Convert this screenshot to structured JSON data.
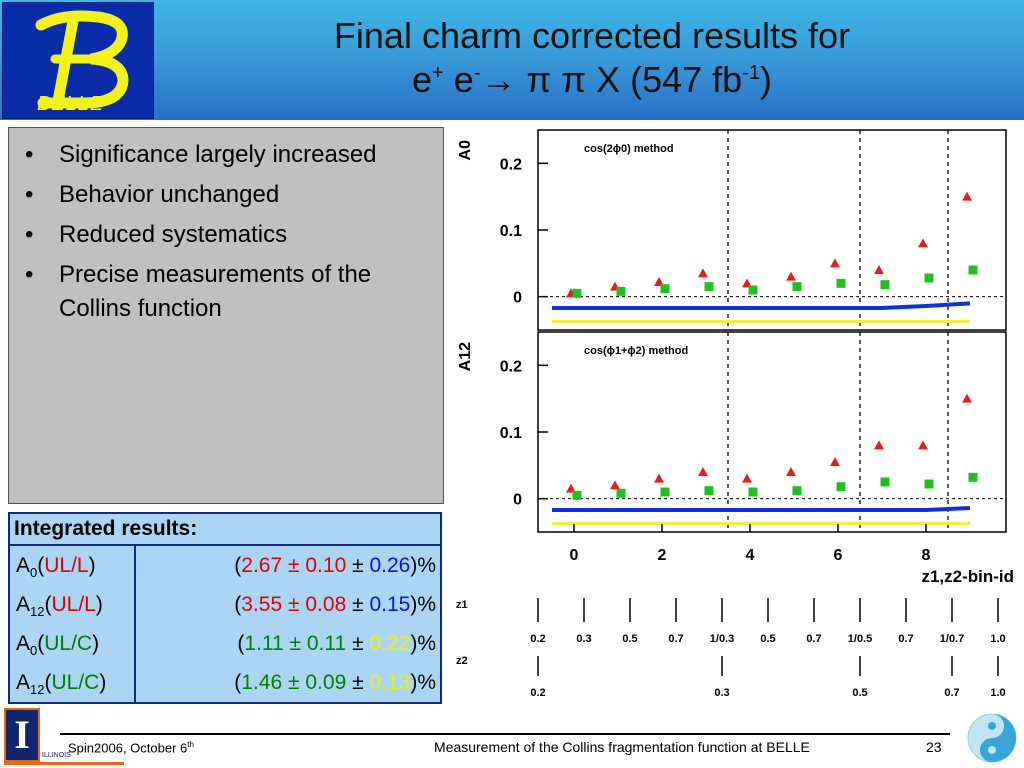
{
  "header": {
    "logo_label": "BELLE",
    "title_line1": "Final charm corrected results for",
    "title_e1": "e",
    "title_sup1": "+",
    "title_e2": " e",
    "title_sup2": "-",
    "title_arrow": "→",
    "title_rest": " π π X (547 fb",
    "title_sup3": "-1",
    "title_close": ")"
  },
  "bullets": [
    "Significance largely increased",
    "Behavior unchanged",
    "Reduced systematics",
    "Precise measurements of the Collins function"
  ],
  "bullet_glyph": "•",
  "table": {
    "header": "Integrated results:",
    "rows": [
      {
        "A": "A",
        "sub": "0",
        "type": "UL/L",
        "open": "(",
        "val": "2.67",
        "pm1": " ± ",
        "stat": "0.10",
        "pm2": " ± ",
        "sys": "0.26",
        "close": ")%",
        "label_color": "#e00000",
        "val_color": "#e00000",
        "sys_color": "#1010e0"
      },
      {
        "A": "A",
        "sub": "12",
        "type": "UL/L",
        "open": "(",
        "val": "3.55",
        "pm1": " ± ",
        "stat": "0.08",
        "pm2": " ± ",
        "sys": "0.15",
        "close": ")%",
        "label_color": "#e00000",
        "val_color": "#e00000",
        "sys_color": "#1010e0"
      },
      {
        "A": "A",
        "sub": "0",
        "type": "UL/C",
        "open": "(",
        "val": "1.11",
        "pm1": " ± ",
        "stat": "0.11",
        "pm2": " ± ",
        "sys": "0.22",
        "close": ")%",
        "label_color": "#008000",
        "val_color": "#008000",
        "sys_color": "#f0f000"
      },
      {
        "A": "A",
        "sub": "12",
        "type": "UL/C",
        "open": "(",
        "val": "1.46",
        "pm1": " ± ",
        "stat": "0.09",
        "pm2": " ± ",
        "sys": "0.13",
        "close": ")%",
        "label_color": "#008000",
        "val_color": "#008000",
        "sys_color": "#f0f000"
      }
    ]
  },
  "chart_data": [
    {
      "type": "scatter",
      "title": "cos(2ϕ0) method",
      "ylabel": "A0",
      "xlabel": "z1,z2-bin-id",
      "ylim": [
        -0.05,
        0.25
      ],
      "xlim": [
        -0.5,
        9.5
      ],
      "yticks": [
        "0",
        "0.1",
        "0.2"
      ],
      "xticks": [
        "0",
        "2",
        "4",
        "6",
        "8"
      ],
      "x": [
        0,
        1,
        2,
        3,
        4,
        5,
        6,
        7,
        8,
        9
      ],
      "series": [
        {
          "marker": "triangle",
          "color": "#e02020",
          "values": [
            0.005,
            0.015,
            0.022,
            0.035,
            0.02,
            0.03,
            0.05,
            0.04,
            0.08,
            0.15
          ]
        },
        {
          "marker": "square",
          "color": "#20c020",
          "values": [
            0.005,
            0.008,
            0.012,
            0.015,
            0.01,
            0.015,
            0.02,
            0.018,
            0.028,
            0.04
          ]
        }
      ],
      "bands": [
        {
          "color": "#1030e0",
          "values": [
            -0.017,
            -0.017,
            -0.017,
            -0.017,
            -0.017,
            -0.017,
            -0.017,
            -0.017,
            -0.014,
            -0.01
          ]
        },
        {
          "color": "#f0f030",
          "values": [
            -0.037,
            -0.037,
            -0.037,
            -0.037,
            -0.037,
            -0.037,
            -0.037,
            -0.037,
            -0.037,
            -0.037
          ]
        }
      ],
      "dividers_x": [
        3.5,
        6.5,
        8.5
      ]
    },
    {
      "type": "scatter",
      "title": "cos(ϕ1+ϕ2) method",
      "ylabel": "A12",
      "xlabel": "z1,z2-bin-id",
      "ylim": [
        -0.05,
        0.25
      ],
      "xlim": [
        -0.5,
        9.5
      ],
      "yticks": [
        "0",
        "0.1",
        "0.2"
      ],
      "xticks": [
        "0",
        "2",
        "4",
        "6",
        "8"
      ],
      "x": [
        0,
        1,
        2,
        3,
        4,
        5,
        6,
        7,
        8,
        9
      ],
      "series": [
        {
          "marker": "triangle",
          "color": "#e02020",
          "values": [
            0.015,
            0.02,
            0.03,
            0.04,
            0.03,
            0.04,
            0.055,
            0.08,
            0.08,
            0.15
          ]
        },
        {
          "marker": "square",
          "color": "#20c020",
          "values": [
            0.005,
            0.008,
            0.01,
            0.012,
            0.01,
            0.012,
            0.018,
            0.025,
            0.022,
            0.032
          ]
        }
      ],
      "bands": [
        {
          "color": "#1030e0",
          "values": [
            -0.017,
            -0.017,
            -0.017,
            -0.017,
            -0.017,
            -0.017,
            -0.017,
            -0.017,
            -0.017,
            -0.014
          ]
        },
        {
          "color": "#f0f030",
          "values": [
            -0.037,
            -0.037,
            -0.037,
            -0.037,
            -0.037,
            -0.037,
            -0.037,
            -0.037,
            -0.037,
            -0.037
          ]
        }
      ],
      "dividers_x": [
        3.5,
        6.5,
        8.5
      ]
    }
  ],
  "z_scale": {
    "z1_label": "z1",
    "z2_label": "z2",
    "z1_ticks": [
      "0.2",
      "0.3",
      "0.5",
      "0.7",
      "1/0.3",
      "0.5",
      "0.7",
      "1/0.5",
      "0.7",
      "1/0.7",
      "1.0"
    ],
    "z2_ticks": [
      "0.2",
      "0.3",
      "0.5",
      "0.7",
      "1.0"
    ]
  },
  "footer": {
    "left": "Spin2006, October 6",
    "left_sup": "th",
    "center": "Measurement of the Collins fragmentation function at BELLE",
    "page": "23",
    "uiuc_glyph": "I",
    "uiuc_text": "ILLINOIS"
  }
}
